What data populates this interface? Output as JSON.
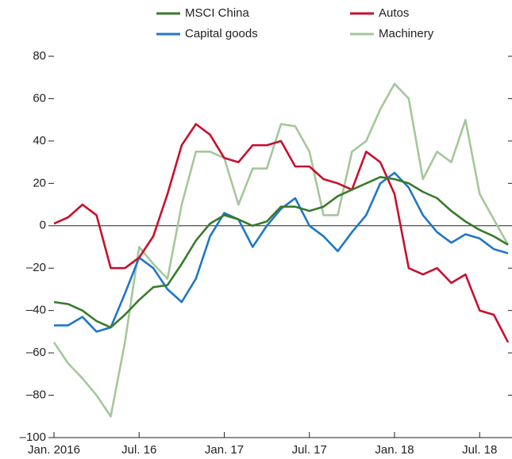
{
  "chart_data": {
    "type": "line",
    "x": [
      "2016-01",
      "2016-02",
      "2016-03",
      "2016-04",
      "2016-05",
      "2016-06",
      "2016-07",
      "2016-08",
      "2016-09",
      "2016-10",
      "2016-11",
      "2016-12",
      "2017-01",
      "2017-02",
      "2017-03",
      "2017-04",
      "2017-05",
      "2017-06",
      "2017-07",
      "2017-08",
      "2017-09",
      "2017-10",
      "2017-11",
      "2017-12",
      "2018-01",
      "2018-02",
      "2018-03",
      "2018-04",
      "2018-05",
      "2018-06",
      "2018-07",
      "2018-08",
      "2018-09"
    ],
    "series": [
      {
        "name": "MSCI China",
        "color": "#3a7a2b",
        "values": [
          -36,
          -37,
          -40,
          -45,
          -48,
          -42,
          -35,
          -29,
          -28,
          -18,
          -7,
          1,
          5,
          3,
          0,
          2,
          9,
          9,
          7,
          9,
          14,
          17,
          20,
          23,
          22,
          20,
          16,
          13,
          7,
          2,
          -2,
          -5,
          -9
        ]
      },
      {
        "name": "Autos",
        "color": "#c8102e",
        "values": [
          1,
          4,
          10,
          5,
          -20,
          -20,
          -15,
          -5,
          15,
          38,
          48,
          43,
          32,
          30,
          38,
          38,
          40,
          28,
          28,
          22,
          20,
          17,
          35,
          30,
          15,
          -20,
          -23,
          -20,
          -27,
          -23,
          -40,
          -42,
          -55
        ]
      },
      {
        "name": "Capital goods",
        "color": "#1f77c8",
        "values": [
          -47,
          -47,
          -43,
          -50,
          -48,
          -32,
          -15,
          -20,
          -30,
          -36,
          -25,
          -5,
          6,
          3,
          -10,
          0,
          8,
          13,
          0,
          -5,
          -12,
          -3,
          5,
          20,
          25,
          18,
          5,
          -3,
          -8,
          -4,
          -6,
          -11,
          -13
        ]
      },
      {
        "name": "Machinery",
        "color": "#a3c89a",
        "values": [
          -55,
          -65,
          -72,
          -80,
          -90,
          -55,
          -10,
          -18,
          -25,
          10,
          35,
          35,
          32,
          10,
          27,
          27,
          48,
          47,
          35,
          5,
          5,
          35,
          40,
          55,
          67,
          60,
          22,
          35,
          30,
          50,
          15,
          3,
          -9
        ]
      }
    ],
    "ylim": [
      -100,
      80
    ],
    "yticks": [
      {
        "value": -100,
        "label": "–100"
      },
      {
        "value": -80,
        "label": "–80"
      },
      {
        "value": -60,
        "label": "–60"
      },
      {
        "value": -40,
        "label": "–40"
      },
      {
        "value": -20,
        "label": "–20"
      },
      0,
      20,
      40,
      60,
      80
    ],
    "xticks": [
      {
        "value": "2016-01",
        "label": "Jan. 2016"
      },
      {
        "value": "2016-07",
        "label": "Jul. 16"
      },
      {
        "value": "2017-01",
        "label": "Jan. 17"
      },
      {
        "value": "2017-07",
        "label": "Jul. 17"
      },
      {
        "value": "2018-01",
        "label": "Jan. 18"
      },
      {
        "value": "2018-07",
        "label": "Jul. 18"
      }
    ]
  }
}
